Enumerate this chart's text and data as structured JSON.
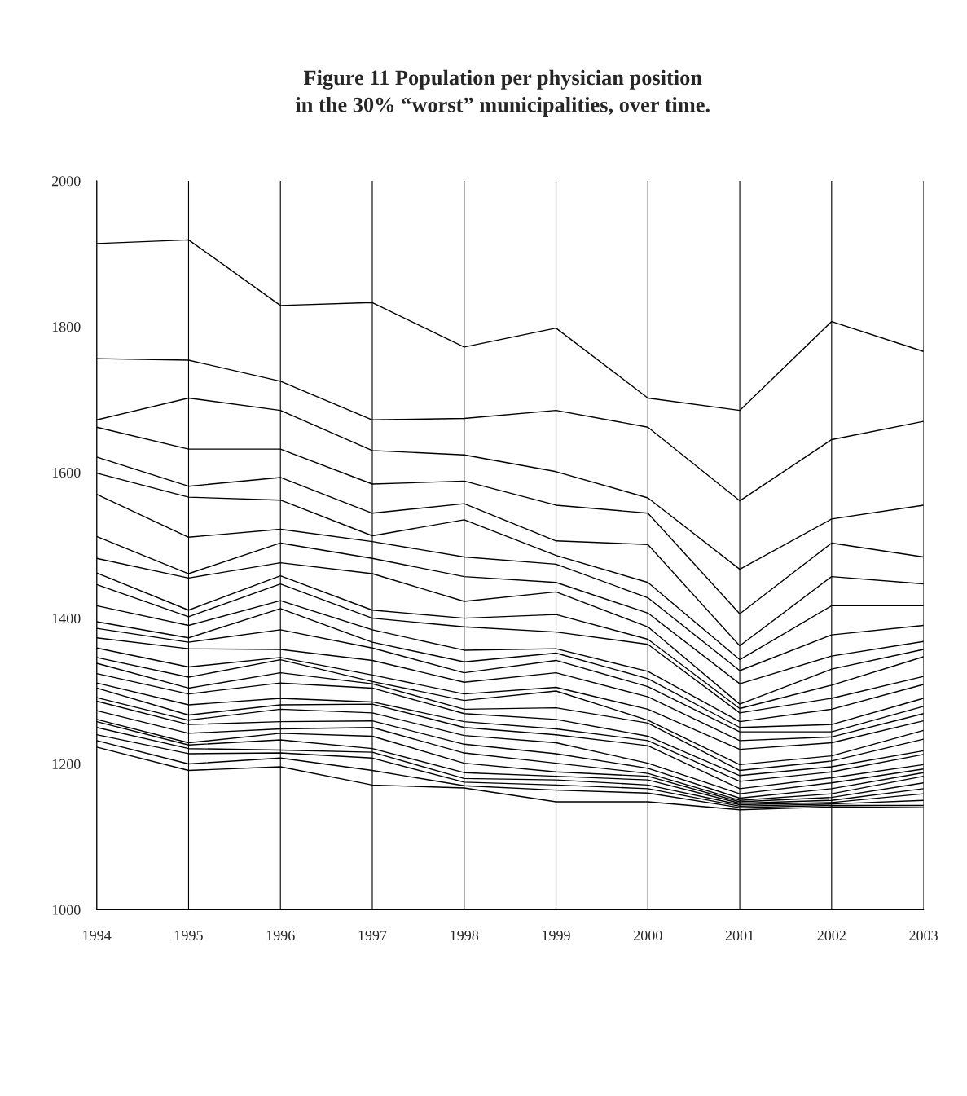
{
  "chart_data": {
    "type": "line",
    "title": "Figure 11 Population per physician position\nin the 30% “worst” municipalities, over time.",
    "x": [
      1994,
      1995,
      1996,
      1997,
      1998,
      1999,
      2000,
      2001,
      2002,
      2003
    ],
    "xlim": [
      1994,
      2003
    ],
    "xticks": [
      1994,
      1995,
      1996,
      1997,
      1998,
      1999,
      2000,
      2001,
      2002,
      2003
    ],
    "ylim": [
      1000,
      2000
    ],
    "yticks": [
      1000,
      1200,
      1400,
      1600,
      1800,
      2000
    ],
    "grid": "x",
    "marker": "none",
    "line_style": "solid",
    "series": [
      {
        "color": "#000000",
        "values": [
          1914,
          1919,
          1829,
          1833,
          1772,
          1798,
          1702,
          1685,
          1807,
          1766
        ]
      },
      {
        "color": "#000000",
        "values": [
          1756,
          1754,
          1725,
          1672,
          1674,
          1685,
          1662,
          1561,
          1645,
          1670
        ]
      },
      {
        "color": "#000000",
        "values": [
          1672,
          1702,
          1685,
          1630,
          1624,
          1601,
          1565,
          1467,
          1536,
          1555
        ]
      },
      {
        "color": "#000000",
        "values": [
          1662,
          1632,
          1632,
          1584,
          1588,
          1555,
          1544,
          1406,
          1503,
          1484
        ]
      },
      {
        "color": "#000000",
        "values": [
          1621,
          1581,
          1593,
          1544,
          1557,
          1506,
          1501,
          1362,
          1457,
          1447
        ]
      },
      {
        "color": "#000000",
        "values": [
          1599,
          1566,
          1562,
          1513,
          1535,
          1486,
          1449,
          1343,
          1417,
          1417
        ]
      },
      {
        "color": "#000000",
        "values": [
          1570,
          1511,
          1522,
          1505,
          1484,
          1474,
          1428,
          1328,
          1377,
          1390
        ]
      },
      {
        "color": "#000000",
        "values": [
          1512,
          1461,
          1503,
          1482,
          1457,
          1449,
          1407,
          1310,
          1348,
          1368
        ]
      },
      {
        "color": "#000000",
        "values": [
          1482,
          1455,
          1476,
          1461,
          1423,
          1436,
          1388,
          1282,
          1330,
          1357
        ]
      },
      {
        "color": "#000000",
        "values": [
          1462,
          1411,
          1458,
          1411,
          1400,
          1405,
          1371,
          1276,
          1308,
          1347
        ]
      },
      {
        "color": "#000000",
        "values": [
          1446,
          1402,
          1447,
          1400,
          1388,
          1381,
          1364,
          1270,
          1290,
          1320
        ]
      },
      {
        "color": "#000000",
        "values": [
          1417,
          1390,
          1424,
          1384,
          1356,
          1358,
          1327,
          1258,
          1275,
          1309
        ]
      },
      {
        "color": "#000000",
        "values": [
          1395,
          1373,
          1413,
          1367,
          1340,
          1352,
          1317,
          1250,
          1254,
          1290
        ]
      },
      {
        "color": "#000000",
        "values": [
          1386,
          1367,
          1384,
          1359,
          1325,
          1342,
          1306,
          1244,
          1244,
          1279
        ]
      },
      {
        "color": "#000000",
        "values": [
          1373,
          1358,
          1357,
          1342,
          1312,
          1325,
          1292,
          1232,
          1237,
          1269
        ]
      },
      {
        "color": "#000000",
        "values": [
          1359,
          1333,
          1346,
          1322,
          1296,
          1305,
          1275,
          1220,
          1229,
          1259
        ]
      },
      {
        "color": "#000000",
        "values": [
          1346,
          1319,
          1343,
          1313,
          1287,
          1300,
          1260,
          1199,
          1211,
          1246
        ]
      },
      {
        "color": "#000000",
        "values": [
          1338,
          1304,
          1325,
          1310,
          1275,
          1277,
          1256,
          1191,
          1204,
          1234
        ]
      },
      {
        "color": "#000000",
        "values": [
          1324,
          1296,
          1311,
          1304,
          1269,
          1261,
          1238,
          1184,
          1196,
          1218
        ]
      },
      {
        "color": "#000000",
        "values": [
          1311,
          1281,
          1290,
          1285,
          1258,
          1248,
          1232,
          1176,
          1189,
          1213
        ]
      },
      {
        "color": "#000000",
        "values": [
          1304,
          1267,
          1281,
          1282,
          1250,
          1240,
          1225,
          1166,
          1181,
          1199
        ]
      },
      {
        "color": "#000000",
        "values": [
          1291,
          1260,
          1275,
          1270,
          1239,
          1229,
          1201,
          1159,
          1174,
          1193
        ]
      },
      {
        "color": "#000000",
        "values": [
          1286,
          1254,
          1258,
          1259,
          1227,
          1214,
          1194,
          1153,
          1166,
          1188
        ]
      },
      {
        "color": "#000000",
        "values": [
          1273,
          1242,
          1248,
          1250,
          1215,
          1201,
          1187,
          1150,
          1159,
          1183
        ]
      },
      {
        "color": "#000000",
        "values": [
          1261,
          1229,
          1242,
          1238,
          1201,
          1189,
          1183,
          1148,
          1154,
          1174
        ]
      },
      {
        "color": "#000000",
        "values": [
          1258,
          1226,
          1233,
          1221,
          1188,
          1183,
          1178,
          1146,
          1150,
          1166
        ]
      },
      {
        "color": "#000000",
        "values": [
          1250,
          1221,
          1219,
          1216,
          1180,
          1178,
          1171,
          1144,
          1147,
          1159
        ]
      },
      {
        "color": "#000000",
        "values": [
          1240,
          1214,
          1215,
          1208,
          1175,
          1171,
          1166,
          1142,
          1145,
          1150
        ]
      },
      {
        "color": "#000000",
        "values": [
          1232,
          1200,
          1208,
          1191,
          1170,
          1164,
          1160,
          1140,
          1143,
          1143
        ]
      },
      {
        "color": "#000000",
        "values": [
          1223,
          1191,
          1196,
          1171,
          1167,
          1148,
          1148,
          1137,
          1141,
          1140
        ]
      }
    ]
  }
}
